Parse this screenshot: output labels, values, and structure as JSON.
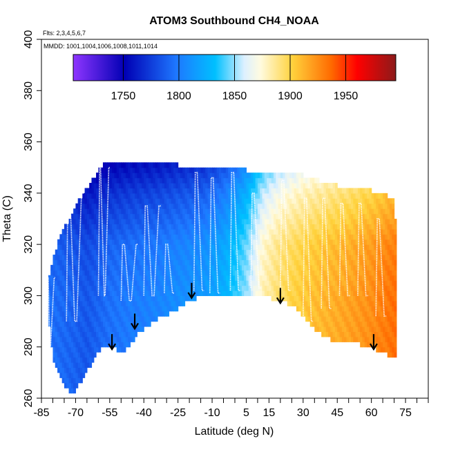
{
  "chart_data": {
    "type": "heatmap",
    "title": "ATOM3 Southbound CH4_NOAA",
    "flights_label": "Flts: 2,3,4,5,6,7",
    "mmdd_label": "MMDD: 1001,1004,1006,1008,1011,1014",
    "xlabel": "Latitude (deg N)",
    "ylabel": "Theta (C)",
    "xlim": [
      -85,
      85
    ],
    "ylim": [
      260,
      400
    ],
    "x_ticks": [
      -85,
      -70,
      -55,
      -40,
      -25,
      -10,
      5,
      15,
      30,
      45,
      60,
      75
    ],
    "x_tick_labels": [
      "-85",
      "-70",
      "-55",
      "-40",
      "-25",
      "-10",
      "5",
      "15",
      "30",
      "45",
      "60",
      "75"
    ],
    "y_ticks": [
      260,
      280,
      300,
      320,
      340,
      360,
      380,
      400
    ],
    "y_tick_labels": [
      "260",
      "280",
      "300",
      "320",
      "340",
      "360",
      "380",
      "400"
    ],
    "colorbar": {
      "min": 1705,
      "max": 1995,
      "ticks": [
        1750,
        1800,
        1850,
        1900,
        1950
      ],
      "tick_labels": [
        "1750",
        "1800",
        "1850",
        "1900",
        "1950"
      ]
    },
    "lower_boundary": [
      {
        "lat": -82,
        "theta": 292
      },
      {
        "lat": -80,
        "theta": 275
      },
      {
        "lat": -77,
        "theta": 268
      },
      {
        "lat": -74,
        "theta": 264
      },
      {
        "lat": -71,
        "theta": 262
      },
      {
        "lat": -68,
        "theta": 266
      },
      {
        "lat": -64,
        "theta": 272
      },
      {
        "lat": -60,
        "theta": 278
      },
      {
        "lat": -56,
        "theta": 281
      },
      {
        "lat": -53,
        "theta": 280
      },
      {
        "lat": -50,
        "theta": 277
      },
      {
        "lat": -46,
        "theta": 281
      },
      {
        "lat": -42,
        "theta": 286
      },
      {
        "lat": -37,
        "theta": 289
      },
      {
        "lat": -32,
        "theta": 292
      },
      {
        "lat": -27,
        "theta": 294
      },
      {
        "lat": -22,
        "theta": 297
      },
      {
        "lat": -17,
        "theta": 299
      },
      {
        "lat": -10,
        "theta": 300
      },
      {
        "lat": 0,
        "theta": 300
      },
      {
        "lat": 10,
        "theta": 300
      },
      {
        "lat": 16,
        "theta": 299
      },
      {
        "lat": 20,
        "theta": 298
      },
      {
        "lat": 26,
        "theta": 296
      },
      {
        "lat": 31,
        "theta": 291
      },
      {
        "lat": 36,
        "theta": 286
      },
      {
        "lat": 42,
        "theta": 283
      },
      {
        "lat": 48,
        "theta": 282
      },
      {
        "lat": 55,
        "theta": 281
      },
      {
        "lat": 62,
        "theta": 279
      },
      {
        "lat": 67,
        "theta": 277
      },
      {
        "lat": 71,
        "theta": 276
      }
    ],
    "upper_boundary": [
      {
        "lat": -82,
        "theta": 307
      },
      {
        "lat": -78,
        "theta": 320
      },
      {
        "lat": -74,
        "theta": 328
      },
      {
        "lat": -70,
        "theta": 335
      },
      {
        "lat": -66,
        "theta": 341
      },
      {
        "lat": -62,
        "theta": 346
      },
      {
        "lat": -58,
        "theta": 351
      },
      {
        "lat": -50,
        "theta": 353
      },
      {
        "lat": -40,
        "theta": 352
      },
      {
        "lat": -30,
        "theta": 352
      },
      {
        "lat": -20,
        "theta": 350
      },
      {
        "lat": -10,
        "theta": 350
      },
      {
        "lat": 0,
        "theta": 350
      },
      {
        "lat": 10,
        "theta": 348
      },
      {
        "lat": 20,
        "theta": 348
      },
      {
        "lat": 30,
        "theta": 347
      },
      {
        "lat": 40,
        "theta": 344
      },
      {
        "lat": 50,
        "theta": 342
      },
      {
        "lat": 60,
        "theta": 341
      },
      {
        "lat": 66,
        "theta": 340
      },
      {
        "lat": 70,
        "theta": 337
      },
      {
        "lat": 72,
        "theta": 305
      }
    ],
    "ch4_by_latitude": [
      {
        "lat": -82,
        "ch4": 1795
      },
      {
        "lat": -72,
        "ch4": 1790
      },
      {
        "lat": -65,
        "ch4": 1785
      },
      {
        "lat": -55,
        "ch4": 1795
      },
      {
        "lat": -45,
        "ch4": 1800
      },
      {
        "lat": -35,
        "ch4": 1803
      },
      {
        "lat": -25,
        "ch4": 1808
      },
      {
        "lat": -15,
        "ch4": 1812
      },
      {
        "lat": -5,
        "ch4": 1825
      },
      {
        "lat": 5,
        "ch4": 1850
      },
      {
        "lat": 12,
        "ch4": 1880
      },
      {
        "lat": 20,
        "ch4": 1895
      },
      {
        "lat": 30,
        "ch4": 1905
      },
      {
        "lat": 40,
        "ch4": 1912
      },
      {
        "lat": 50,
        "ch4": 1918
      },
      {
        "lat": 60,
        "ch4": 1925
      },
      {
        "lat": 70,
        "ch4": 1935
      }
    ],
    "theta_gradient": [
      {
        "theta": 300,
        "delta": 0
      },
      {
        "theta": 320,
        "delta": -5
      },
      {
        "theta": 340,
        "delta": -25
      },
      {
        "theta": 355,
        "delta": -50
      }
    ],
    "flight_paths": [
      {
        "base": 307,
        "top": 280,
        "lats": [
          -82,
          -80
        ]
      },
      {
        "base": 290,
        "top": 340,
        "lats": [
          -74,
          -71,
          -68
        ]
      },
      {
        "base": 300,
        "top": 350,
        "lats": [
          -60,
          -58,
          -56
        ]
      },
      {
        "base": 298,
        "top": 320,
        "lats": [
          -50,
          -47,
          -44
        ]
      },
      {
        "base": 300,
        "top": 335,
        "lats": [
          -40,
          -37,
          -34
        ]
      },
      {
        "base": 301,
        "top": 320,
        "lats": [
          -31,
          -28
        ]
      },
      {
        "base": 302,
        "top": 348,
        "lats": [
          -18,
          -15
        ]
      },
      {
        "base": 301,
        "top": 346,
        "lats": [
          -11,
          -8
        ]
      },
      {
        "base": 302,
        "top": 348,
        "lats": [
          -2,
          1
        ]
      },
      {
        "base": 303,
        "top": 340,
        "lats": [
          7,
          10
        ]
      },
      {
        "base": 302,
        "top": 345,
        "lats": [
          20,
          23
        ]
      },
      {
        "base": 290,
        "top": 338,
        "lats": [
          30,
          33
        ]
      },
      {
        "base": 295,
        "top": 338,
        "lats": [
          38,
          41
        ]
      },
      {
        "base": 300,
        "top": 336,
        "lats": [
          46,
          49
        ]
      },
      {
        "base": 300,
        "top": 336,
        "lats": [
          54,
          57
        ]
      },
      {
        "base": 292,
        "top": 330,
        "lats": [
          62,
          65
        ]
      }
    ],
    "markers": [
      {
        "lat": -54,
        "theta": 285
      },
      {
        "lat": -44,
        "theta": 293
      },
      {
        "lat": -19,
        "theta": 305
      },
      {
        "lat": 20,
        "theta": 303
      },
      {
        "lat": 61,
        "theta": 285
      }
    ]
  }
}
